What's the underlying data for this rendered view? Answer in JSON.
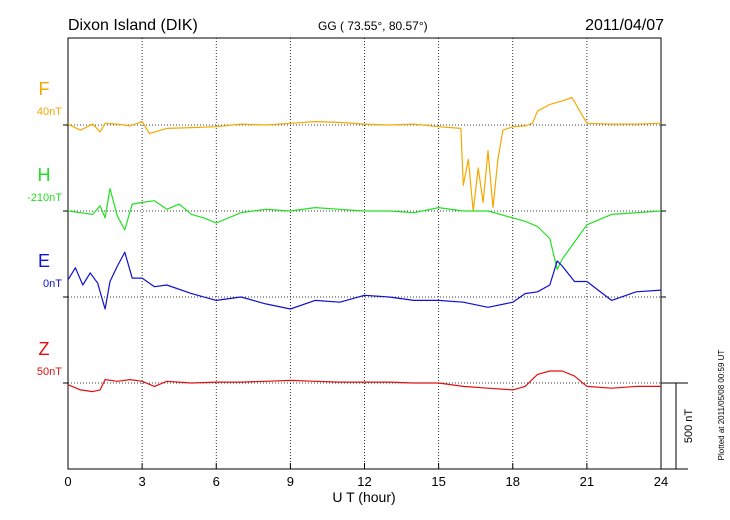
{
  "chart_data": {
    "type": "line",
    "title": "Dixon Island (DIK)",
    "coords": "GG ( 73.55°,  80.57°)",
    "date": "2011/04/07",
    "xlabel": "U T (hour)",
    "xlim": [
      0,
      24
    ],
    "xticks": [
      0,
      3,
      6,
      9,
      12,
      15,
      18,
      21,
      24
    ],
    "grid": "dotted vertical at every 3 hours",
    "scale_bar": "500 nT",
    "plotted_note": "Plotted at 2011/05/08 00:59 UT",
    "series": [
      {
        "name": "F",
        "baseline_label": "40nT",
        "color": "#f5a800",
        "x": [
          0,
          0.5,
          1,
          1.3,
          1.5,
          2,
          2.5,
          3,
          3.3,
          4,
          5,
          6,
          7,
          8,
          9,
          10,
          11,
          12,
          13,
          14,
          15,
          15.5,
          15.9,
          16,
          16.2,
          16.4,
          16.6,
          16.8,
          17,
          17.2,
          17.4,
          17.6,
          18,
          18.5,
          18.8,
          19,
          19.5,
          20,
          20.4,
          21,
          22,
          23,
          24
        ],
        "values": [
          5,
          -30,
          5,
          -40,
          10,
          5,
          -5,
          20,
          -50,
          -20,
          -15,
          -10,
          5,
          0,
          10,
          20,
          15,
          5,
          0,
          5,
          -10,
          -15,
          -20,
          -350,
          -200,
          -500,
          -250,
          -450,
          -150,
          -480,
          -200,
          -30,
          -10,
          -5,
          10,
          80,
          120,
          140,
          160,
          10,
          5,
          5,
          10
        ]
      },
      {
        "name": "H",
        "baseline_label": "-210nT",
        "color": "#22e022",
        "x": [
          0,
          0.5,
          1,
          1.3,
          1.5,
          1.7,
          2,
          2.3,
          2.6,
          3,
          3.5,
          4,
          4.5,
          5,
          5.5,
          6,
          7,
          8,
          9,
          10,
          11,
          12,
          13,
          14,
          15,
          16,
          17,
          18,
          18.5,
          19,
          19.5,
          19.8,
          20,
          20.5,
          21,
          22,
          23,
          24
        ],
        "values": [
          0,
          -10,
          -20,
          30,
          -40,
          130,
          -30,
          -110,
          40,
          50,
          60,
          10,
          40,
          -20,
          -40,
          -70,
          -10,
          10,
          0,
          20,
          10,
          0,
          0,
          -10,
          20,
          0,
          0,
          -40,
          -60,
          -90,
          -160,
          -340,
          -280,
          -180,
          -80,
          -20,
          -10,
          0
        ]
      },
      {
        "name": "E",
        "baseline_label": "0nT",
        "color": "#1010d0",
        "x": [
          0,
          0.3,
          0.6,
          0.9,
          1.2,
          1.4,
          1.5,
          1.7,
          2,
          2.3,
          2.6,
          3,
          3.5,
          4,
          5,
          6,
          7,
          8,
          9,
          10,
          11,
          12,
          13,
          14,
          15,
          16,
          17,
          18,
          18.5,
          19,
          19.5,
          19.8,
          20,
          20.5,
          21,
          22,
          23,
          24
        ],
        "values": [
          100,
          170,
          70,
          140,
          80,
          -20,
          -70,
          90,
          180,
          260,
          110,
          110,
          60,
          70,
          20,
          -20,
          0,
          -40,
          -70,
          -20,
          -30,
          10,
          0,
          -20,
          -20,
          -30,
          -60,
          -30,
          20,
          30,
          70,
          210,
          180,
          90,
          90,
          -20,
          30,
          40
        ]
      },
      {
        "name": "Z",
        "baseline_label": "50nT",
        "color": "#e01010",
        "x": [
          0,
          0.5,
          1,
          1.3,
          1.5,
          2,
          2.5,
          3,
          3.5,
          4,
          5,
          6,
          7,
          8,
          9,
          10,
          11,
          12,
          13,
          14,
          15,
          16,
          17,
          18,
          18.5,
          19,
          19.5,
          20,
          20.5,
          21,
          22,
          23,
          24
        ],
        "values": [
          -10,
          -40,
          -50,
          -40,
          20,
          10,
          20,
          10,
          -20,
          10,
          0,
          5,
          5,
          10,
          15,
          10,
          5,
          5,
          5,
          0,
          0,
          -20,
          -30,
          -40,
          -20,
          50,
          70,
          70,
          40,
          -20,
          -30,
          -20,
          -20
        ]
      }
    ]
  }
}
